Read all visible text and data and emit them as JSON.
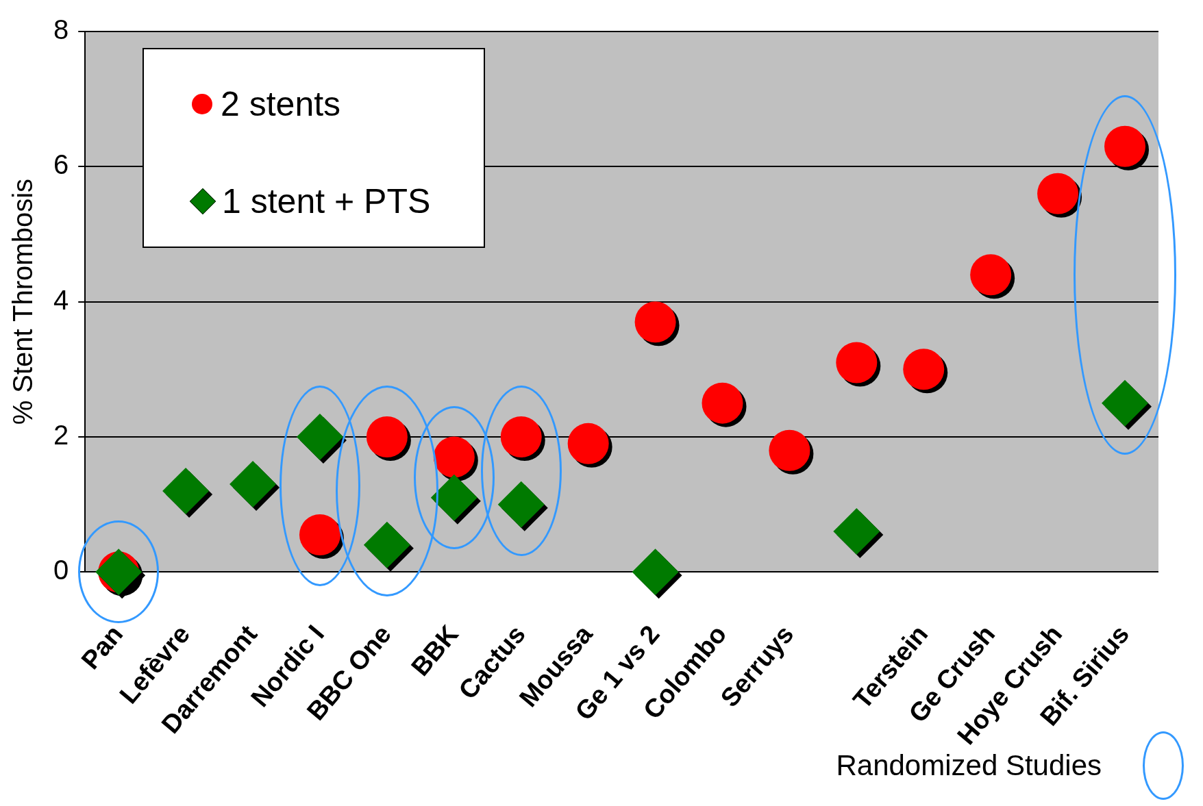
{
  "chart_data": {
    "type": "scatter",
    "ylabel": "% Stent Thrombosis",
    "categories": [
      "Pan",
      "Lefèvre",
      "Darremont",
      "Nordic I",
      "BBC One",
      "BBK",
      "Cactus",
      "Moussa",
      "Ge 1 vs 2",
      "Colombo",
      "Serruys",
      null,
      "Terstein",
      "Ge Crush",
      "Hoye Crush",
      "Bif. Sirius"
    ],
    "series": [
      {
        "name": "2 stents",
        "color": "#ff0000",
        "marker": "circle",
        "values": [
          0,
          null,
          null,
          0.55,
          2.0,
          1.7,
          2.0,
          1.9,
          3.7,
          2.5,
          1.8,
          3.1,
          3.0,
          4.4,
          5.6,
          6.3
        ]
      },
      {
        "name": "1 stent + PTS",
        "color": "#007a00",
        "marker": "diamond",
        "values": [
          0,
          1.2,
          1.3,
          2.0,
          0.4,
          1.1,
          1.0,
          null,
          0,
          null,
          null,
          0.6,
          null,
          null,
          null,
          2.5
        ]
      }
    ],
    "ylim": [
      0,
      8
    ],
    "yticks": [
      0,
      2,
      4,
      6,
      8
    ],
    "grid": "y",
    "legend": "top left",
    "annotations": [
      "Randomized Studies"
    ]
  }
}
